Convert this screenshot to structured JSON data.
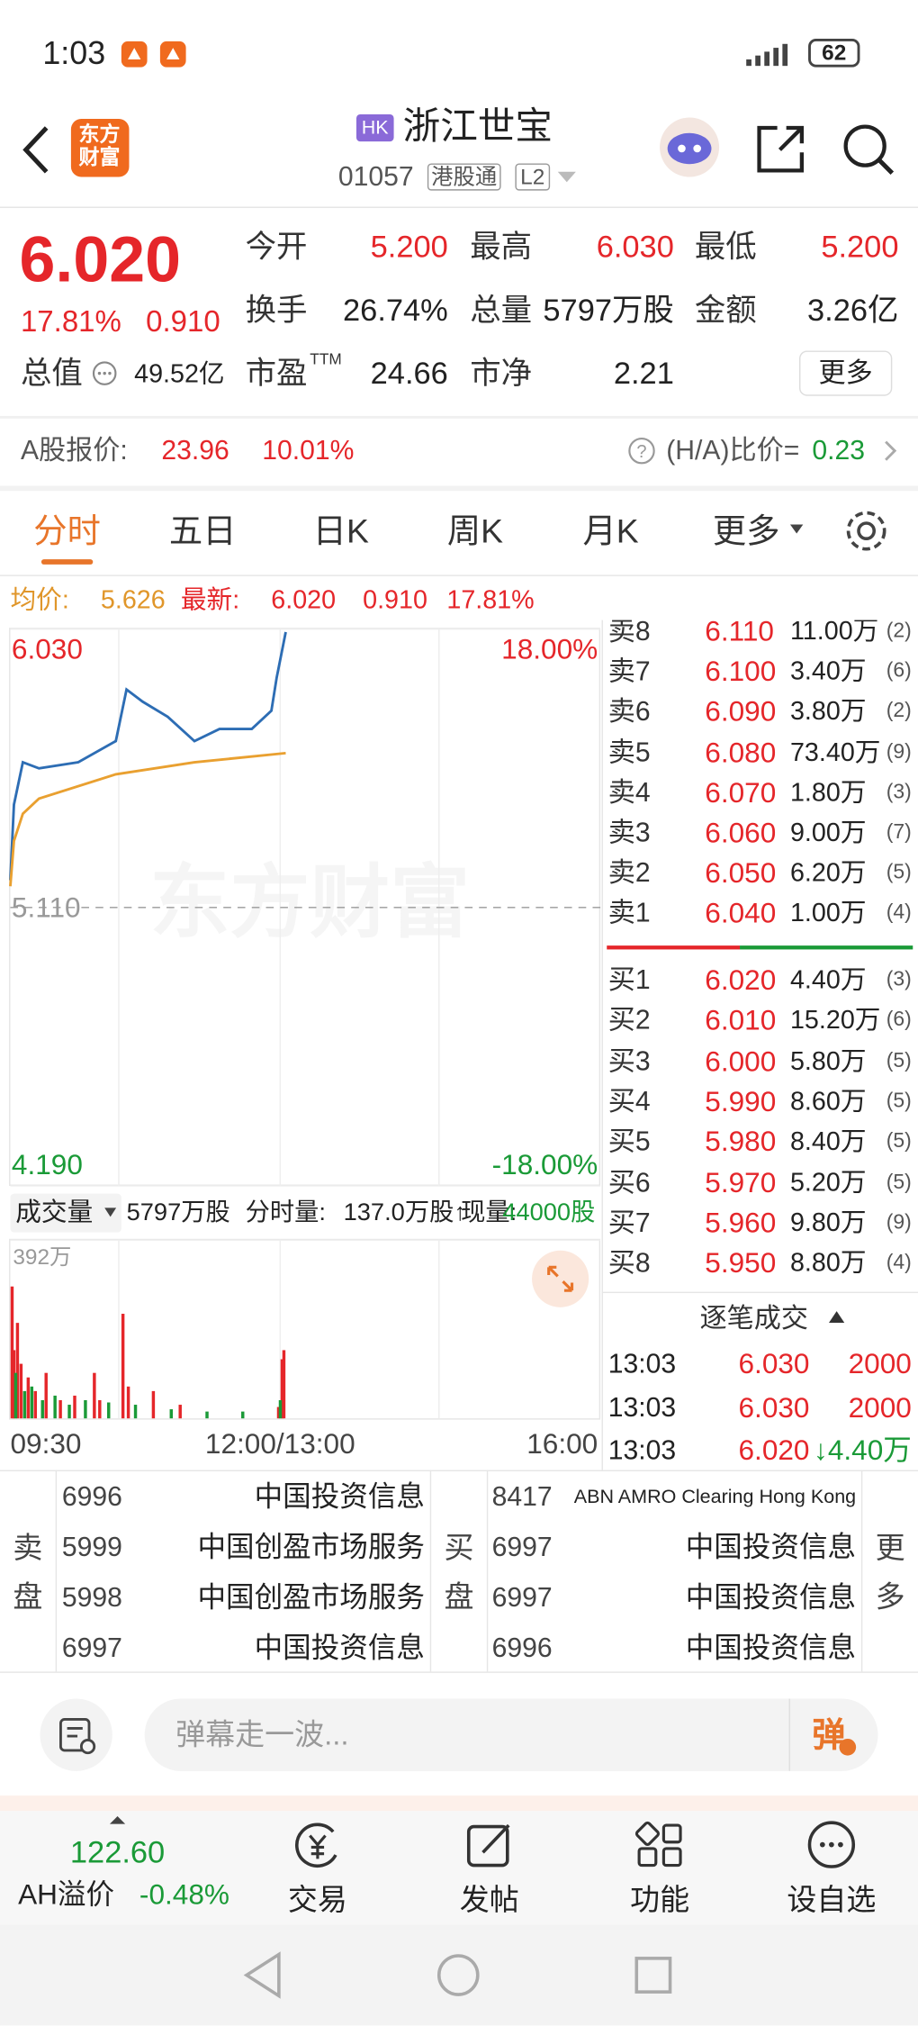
{
  "status_bar": {
    "time": "1:03",
    "battery": "62"
  },
  "header": {
    "logo": "东方财富",
    "market_badge": "HK",
    "name": "浙江世宝",
    "code": "01057",
    "connect": "港股通",
    "level": "L2"
  },
  "quote": {
    "price": "6.020",
    "change_pct": "17.81%",
    "change": "0.910",
    "fields": [
      {
        "label": "今开",
        "value": "5.200"
      },
      {
        "label": "最高",
        "value": "6.030"
      },
      {
        "label": "最低",
        "value": "5.200"
      },
      {
        "label": "换手",
        "value": "26.74%"
      },
      {
        "label": "总量",
        "value": "5797万股"
      },
      {
        "label": "金额",
        "value": "3.26亿"
      },
      {
        "label": "总值",
        "value": "49.52亿"
      },
      {
        "label": "市盈",
        "sup": "TTM",
        "value": "24.66"
      },
      {
        "label": "市净",
        "value": "2.21"
      }
    ],
    "more": "更多"
  },
  "a_share": {
    "label": "A股报价:",
    "price": "23.96",
    "change_pct": "10.01%",
    "ratio_label": "(H/A)比价=",
    "ratio": "0.23"
  },
  "tabs": [
    "分时",
    "五日",
    "日K",
    "周K",
    "月K",
    "更多"
  ],
  "summary": {
    "avg_label": "均价:",
    "avg": "5.626",
    "latest_label": "最新:",
    "latest": "6.020",
    "change": "0.910",
    "change_pct": "17.81%"
  },
  "chart": {
    "type": "line",
    "watermark": "东方财富",
    "x_labels": [
      "09:30",
      "12:00/13:00",
      "16:00"
    ],
    "xlim": [
      0,
      330
    ],
    "ylim": [
      4.19,
      6.03
    ],
    "yticks": [
      {
        "value": 6.03,
        "label": "6.030"
      },
      {
        "value": 5.11,
        "label": "5.110"
      },
      {
        "value": 4.19,
        "label": "4.190"
      }
    ],
    "pct_ticks": [
      "18.00%",
      "-18.00%"
    ],
    "series": [
      {
        "color": "#2d6db4",
        "x": [
          0,
          2,
          7,
          16,
          38,
          59,
          65,
          74,
          88,
          103,
          117,
          135,
          146,
          149,
          154
        ],
        "values": [
          5.2,
          5.45,
          5.59,
          5.57,
          5.59,
          5.66,
          5.83,
          5.79,
          5.74,
          5.66,
          5.7,
          5.7,
          5.76,
          5.87,
          6.02
        ]
      },
      {
        "color": "#e9a030",
        "x": [
          0,
          2,
          7,
          16,
          59,
          103,
          154
        ],
        "values": [
          5.18,
          5.33,
          5.42,
          5.47,
          5.55,
          5.59,
          5.62
        ]
      }
    ]
  },
  "volume_bar": {
    "selector": "成交量",
    "total": "5797万股",
    "minute_label": "分时量:",
    "minute": "137.0万股↑",
    "current_label": "现量:",
    "current": "44000股"
  },
  "volume_chart": {
    "type": "bar",
    "ylim": [
      0,
      392
    ],
    "yticks": [
      {
        "value": 392,
        "label": "392万"
      }
    ],
    "series": [
      {
        "color": "#e5262a",
        "x": [
          1,
          2,
          4,
          6,
          10,
          14,
          20,
          28,
          36,
          47,
          50,
          63,
          66,
          80,
          95,
          150,
          152,
          153
        ],
        "values": [
          290,
          150,
          210,
          120,
          90,
          60,
          100,
          40,
          50,
          100,
          40,
          230,
          70,
          60,
          30,
          25,
          130,
          150
        ]
      },
      {
        "color": "#1a9a37",
        "x": [
          3,
          8,
          12,
          18,
          25,
          33,
          42,
          55,
          70,
          90,
          110,
          130,
          151
        ],
        "values": [
          100,
          60,
          70,
          40,
          50,
          30,
          40,
          35,
          30,
          20,
          15,
          15,
          40
        ]
      }
    ]
  },
  "order_book": {
    "asks": [
      {
        "level": "卖8",
        "price": "6.110",
        "volume": "11.00万",
        "count": "(2)"
      },
      {
        "level": "卖7",
        "price": "6.100",
        "volume": "3.40万",
        "count": "(6)"
      },
      {
        "level": "卖6",
        "price": "6.090",
        "volume": "3.80万",
        "count": "(2)"
      },
      {
        "level": "卖5",
        "price": "6.080",
        "volume": "73.40万",
        "count": "(9)"
      },
      {
        "level": "卖4",
        "price": "6.070",
        "volume": "1.80万",
        "count": "(3)"
      },
      {
        "level": "卖3",
        "price": "6.060",
        "volume": "9.00万",
        "count": "(7)"
      },
      {
        "level": "卖2",
        "price": "6.050",
        "volume": "6.20万",
        "count": "(5)"
      },
      {
        "level": "卖1",
        "price": "6.040",
        "volume": "1.00万",
        "count": "(4)"
      }
    ],
    "bids": [
      {
        "level": "买1",
        "price": "6.020",
        "volume": "4.40万",
        "count": "(3)"
      },
      {
        "level": "买2",
        "price": "6.010",
        "volume": "15.20万",
        "count": "(6)"
      },
      {
        "level": "买3",
        "price": "6.000",
        "volume": "5.80万",
        "count": "(5)"
      },
      {
        "level": "买4",
        "price": "5.990",
        "volume": "8.60万",
        "count": "(5)"
      },
      {
        "level": "买5",
        "price": "5.980",
        "volume": "8.40万",
        "count": "(5)"
      },
      {
        "level": "买6",
        "price": "5.970",
        "volume": "5.20万",
        "count": "(5)"
      },
      {
        "level": "买7",
        "price": "5.960",
        "volume": "9.80万",
        "count": "(9)"
      },
      {
        "level": "买8",
        "price": "5.950",
        "volume": "8.80万",
        "count": "(4)"
      }
    ]
  },
  "trades": {
    "title": "逐笔成交",
    "rows": [
      {
        "time": "13:03",
        "price": "6.030",
        "volume": "2000"
      },
      {
        "time": "13:03",
        "price": "6.030",
        "volume": "2000"
      },
      {
        "time": "13:03",
        "price": "6.020",
        "direction": "↓",
        "volume": "4.40万"
      }
    ]
  },
  "brokers": {
    "sell_label": "卖盘",
    "buy_label": "买盘",
    "more": "更多",
    "sell": [
      {
        "code": "6996",
        "name": "中国投资信息"
      },
      {
        "code": "5999",
        "name": "中国创盈市场服务"
      },
      {
        "code": "5998",
        "name": "中国创盈市场服务"
      },
      {
        "code": "6997",
        "name": "中国投资信息"
      }
    ],
    "buy": [
      {
        "code": "8417",
        "name": "ABN AMRO Clearing Hong Kong"
      },
      {
        "code": "6997",
        "name": "中国投资信息"
      },
      {
        "code": "6997",
        "name": "中国投资信息"
      },
      {
        "code": "6996",
        "name": "中国投资信息"
      }
    ]
  },
  "comment": {
    "placeholder": "弹幕走一波...",
    "button": "弹"
  },
  "bottom_nav": {
    "ah_value": "122.60",
    "ah_label": "AH溢价",
    "ah_change": "-0.48%",
    "items": [
      "交易",
      "发帖",
      "功能",
      "设自选"
    ]
  }
}
